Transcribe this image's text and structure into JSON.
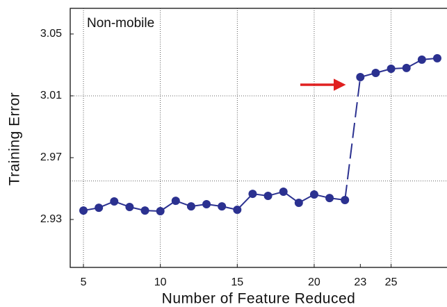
{
  "chart_data": {
    "type": "line",
    "annotation": "Non-mobile",
    "x_label": "Number of Feature Reduced",
    "y_label": "Training  Error",
    "x": [
      5,
      6,
      7,
      8,
      9,
      10,
      11,
      12,
      13,
      14,
      15,
      16,
      17,
      18,
      19,
      20,
      21,
      22,
      23,
      24,
      25,
      26,
      27,
      28
    ],
    "series": [
      {
        "color": "#2b3190",
        "values": [
          2.9358,
          2.9376,
          2.9417,
          2.9381,
          2.9358,
          2.9354,
          2.9421,
          2.9385,
          2.9399,
          2.9385,
          2.9363,
          2.9466,
          2.9453,
          2.948,
          2.9408,
          2.9462,
          2.9439,
          2.9426,
          3.0221,
          3.0248,
          3.0275,
          3.028,
          3.0334,
          3.0343
        ]
      }
    ],
    "xlim": [
      4.14,
      28.77
    ],
    "ylim": [
      2.899,
      3.0666
    ],
    "xticks": [
      5,
      10,
      15,
      20,
      23,
      25
    ],
    "yticks": [
      2.93,
      2.97,
      3.01,
      3.05
    ],
    "xgrid": [
      5,
      10,
      15,
      20,
      25
    ],
    "ygrid": [
      3.01,
      2.955
    ]
  }
}
